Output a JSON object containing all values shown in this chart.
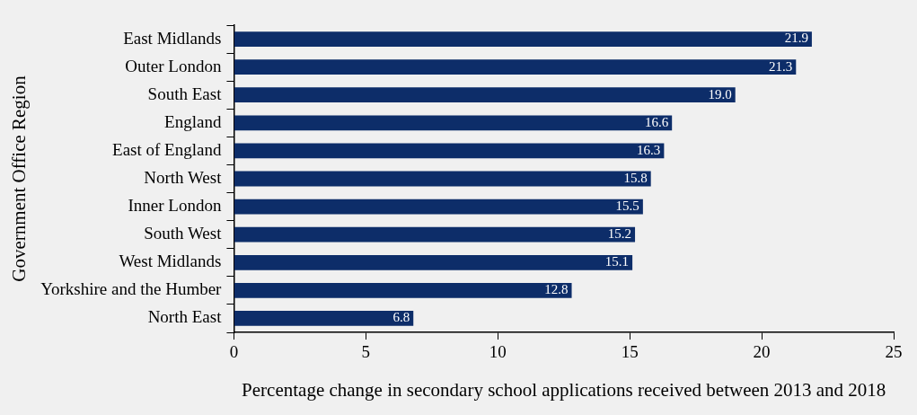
{
  "chart_data": {
    "type": "bar",
    "orientation": "horizontal",
    "categories": [
      "East Midlands",
      "Outer London",
      "South East",
      "England",
      "East of England",
      "North West",
      "Inner London",
      "South West",
      "West Midlands",
      "Yorkshire and the Humber",
      "North East"
    ],
    "values": [
      21.9,
      21.3,
      19.0,
      16.6,
      16.3,
      15.8,
      15.5,
      15.2,
      15.1,
      12.8,
      6.8
    ],
    "value_labels": [
      "21.9",
      "21.3",
      "19.0",
      "16.6",
      "16.3",
      "15.8",
      "15.5",
      "15.2",
      "15.1",
      "12.8",
      "6.8"
    ],
    "color": "#0d2d69",
    "xlim": [
      0,
      25
    ],
    "xticks": [
      0,
      5,
      10,
      15,
      20,
      25
    ],
    "xlabel": "Percentage change in secondary school applications received between 2013 and 2018",
    "ylabel": "Government Office Region",
    "grid": false,
    "legend": false
  }
}
